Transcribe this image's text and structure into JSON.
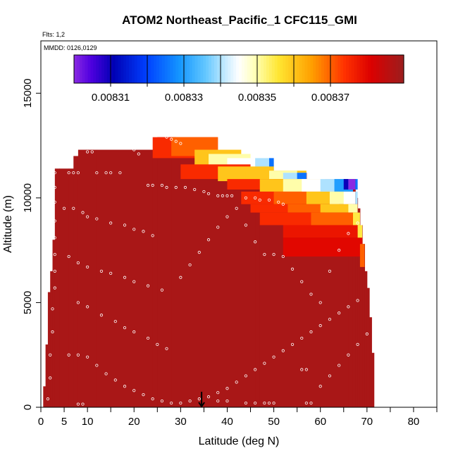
{
  "chart_data": {
    "type": "heatmap",
    "title": "ATOM2 Northeast_Pacific_1 CFC115_GMI",
    "flights_label": "Flts: 1,2",
    "dates_label": "MMDD: 0126,0129",
    "xlabel": "Latitude (deg N)",
    "ylabel": "Altitude (m)",
    "xlim": [
      0,
      85
    ],
    "ylim": [
      0,
      17500
    ],
    "x_ticks": [
      0,
      5,
      10,
      20,
      30,
      40,
      50,
      60,
      70,
      80
    ],
    "x_minor_ticks": [
      15,
      25,
      35,
      45,
      55,
      65,
      75,
      85
    ],
    "y_ticks": [
      0,
      5000,
      10000,
      15000
    ],
    "colorbar": {
      "min": 0.0083,
      "max": 0.00839,
      "ticks": [
        0.00831,
        0.00833,
        0.00835,
        0.00837
      ],
      "tick_labels": [
        "0.00831",
        "0.00833",
        "0.00835",
        "0.00837"
      ]
    },
    "background_value": 0.008388,
    "coverage": [
      [
        0.5,
        0,
        1000
      ],
      [
        1,
        0,
        3000
      ],
      [
        1.5,
        0,
        5500
      ],
      [
        2,
        0,
        6500
      ],
      [
        2.5,
        0,
        8000
      ],
      [
        3,
        0,
        11400
      ],
      [
        4,
        0,
        11400
      ],
      [
        6,
        0,
        11400
      ],
      [
        7,
        0,
        12000
      ],
      [
        8,
        0,
        12300
      ],
      [
        12,
        0,
        12300
      ],
      [
        24,
        0,
        12300
      ],
      [
        25,
        0,
        12900
      ],
      [
        28,
        0,
        12900
      ],
      [
        29,
        0,
        12300
      ],
      [
        36,
        0,
        12300
      ],
      [
        38,
        0,
        11700
      ],
      [
        46,
        0,
        11700
      ],
      [
        47,
        0,
        11200
      ],
      [
        56,
        0,
        11200
      ],
      [
        57,
        0,
        10900
      ],
      [
        66,
        0,
        10900
      ],
      [
        67,
        0,
        10900
      ],
      [
        67.5,
        0,
        10000
      ],
      [
        68,
        0,
        9500
      ],
      [
        68.5,
        0,
        8700
      ],
      [
        69,
        0,
        7800
      ],
      [
        69.5,
        0,
        6500
      ],
      [
        70,
        0,
        5700
      ],
      [
        70.5,
        0,
        4300
      ],
      [
        71,
        0,
        2600
      ],
      [
        71.5,
        0,
        0
      ]
    ],
    "anomalies": [
      {
        "lat": [
          24,
          38
        ],
        "alt": [
          11900,
          12900
        ],
        "value": 0.008375
      },
      {
        "lat": [
          28,
          38
        ],
        "alt": [
          12000,
          12900
        ],
        "value": 0.00837
      },
      {
        "lat": [
          33,
          43
        ],
        "alt": [
          11200,
          12300
        ],
        "value": 0.00836
      },
      {
        "lat": [
          36,
          45
        ],
        "alt": [
          11300,
          12100
        ],
        "value": 0.00835
      },
      {
        "lat": [
          40,
          49
        ],
        "alt": [
          11300,
          11900
        ],
        "value": 0.008345
      },
      {
        "lat": [
          46,
          50
        ],
        "alt": [
          11300,
          11900
        ],
        "value": 0.00834
      },
      {
        "lat": [
          49,
          50
        ],
        "alt": [
          11300,
          11900
        ],
        "value": 0.008325
      },
      {
        "lat": [
          30,
          45
        ],
        "alt": [
          10900,
          11600
        ],
        "value": 0.008375
      },
      {
        "lat": [
          38,
          50
        ],
        "alt": [
          10800,
          11500
        ],
        "value": 0.00836
      },
      {
        "lat": [
          44,
          57
        ],
        "alt": [
          10900,
          11300
        ],
        "value": 0.00836
      },
      {
        "lat": [
          49,
          55
        ],
        "alt": [
          10900,
          11300
        ],
        "value": 0.00835
      },
      {
        "lat": [
          52,
          57
        ],
        "alt": [
          10900,
          11200
        ],
        "value": 0.00834
      },
      {
        "lat": [
          55,
          57
        ],
        "alt": [
          10900,
          11200
        ],
        "value": 0.008325
      },
      {
        "lat": [
          40,
          52
        ],
        "alt": [
          10400,
          10900
        ],
        "value": 0.008375
      },
      {
        "lat": [
          47,
          56
        ],
        "alt": [
          10300,
          10900
        ],
        "value": 0.00836
      },
      {
        "lat": [
          52,
          61
        ],
        "alt": [
          10300,
          10900
        ],
        "value": 0.00835
      },
      {
        "lat": [
          56,
          63
        ],
        "alt": [
          10300,
          10900
        ],
        "value": 0.008345
      },
      {
        "lat": [
          60,
          65
        ],
        "alt": [
          10300,
          10900
        ],
        "value": 0.00834
      },
      {
        "lat": [
          63,
          67
        ],
        "alt": [
          10300,
          10900
        ],
        "value": 0.00833
      },
      {
        "lat": [
          65,
          66
        ],
        "alt": [
          10400,
          10900
        ],
        "value": 0.00831
      },
      {
        "lat": [
          66,
          67.5
        ],
        "alt": [
          10400,
          10900
        ],
        "value": 0.0083
      },
      {
        "lat": [
          67.5,
          68
        ],
        "alt": [
          10400,
          10900
        ],
        "value": 0.008325
      },
      {
        "lat": [
          43,
          56
        ],
        "alt": [
          9700,
          10300
        ],
        "value": 0.008375
      },
      {
        "lat": [
          50,
          60
        ],
        "alt": [
          9700,
          10300
        ],
        "value": 0.00837
      },
      {
        "lat": [
          57,
          64
        ],
        "alt": [
          9700,
          10300
        ],
        "value": 0.00836
      },
      {
        "lat": [
          62,
          67
        ],
        "alt": [
          9700,
          10300
        ],
        "value": 0.00835
      },
      {
        "lat": [
          65,
          67.5
        ],
        "alt": [
          9700,
          10300
        ],
        "value": 0.008345
      },
      {
        "lat": [
          67.5,
          68
        ],
        "alt": [
          9700,
          10300
        ],
        "value": 0.00834
      },
      {
        "lat": [
          45,
          57
        ],
        "alt": [
          9300,
          9700
        ],
        "value": 0.008375
      },
      {
        "lat": [
          53,
          62
        ],
        "alt": [
          9300,
          9700
        ],
        "value": 0.00837
      },
      {
        "lat": [
          60,
          67
        ],
        "alt": [
          9300,
          9700
        ],
        "value": 0.00836
      },
      {
        "lat": [
          66,
          68
        ],
        "alt": [
          9300,
          9700
        ],
        "value": 0.00835
      },
      {
        "lat": [
          47,
          61
        ],
        "alt": [
          8700,
          9300
        ],
        "value": 0.008375
      },
      {
        "lat": [
          58,
          68
        ],
        "alt": [
          8700,
          9300
        ],
        "value": 0.00837
      },
      {
        "lat": [
          67,
          68.5
        ],
        "alt": [
          8700,
          9300
        ],
        "value": 0.008355
      },
      {
        "lat": [
          52,
          68
        ],
        "alt": [
          8100,
          8700
        ],
        "value": 0.008378
      },
      {
        "lat": [
          68,
          69
        ],
        "alt": [
          7800,
          8700
        ],
        "value": 0.008355
      },
      {
        "lat": [
          52,
          69
        ],
        "alt": [
          7200,
          8100
        ],
        "value": 0.00838
      },
      {
        "lat": [
          68.5,
          69.5
        ],
        "alt": [
          6700,
          7800
        ],
        "value": 0.00837
      }
    ],
    "obs_points": [
      [
        1.5,
        400
      ],
      [
        2,
        1400
      ],
      [
        2,
        2500
      ],
      [
        2.5,
        3600
      ],
      [
        2.5,
        4700
      ],
      [
        3,
        5700
      ],
      [
        3,
        6500
      ],
      [
        3,
        7300
      ],
      [
        3,
        8100
      ],
      [
        3,
        8900
      ],
      [
        3,
        9800
      ],
      [
        3,
        10500
      ],
      [
        3,
        11200
      ],
      [
        6,
        11200
      ],
      [
        7,
        11200
      ],
      [
        8,
        11200
      ],
      [
        8,
        150
      ],
      [
        9,
        150
      ],
      [
        6,
        2500
      ],
      [
        8,
        2500
      ],
      [
        10,
        12200
      ],
      [
        11,
        12200
      ],
      [
        12,
        11200
      ],
      [
        14,
        11200
      ],
      [
        15,
        11200
      ],
      [
        17,
        11200
      ],
      [
        18,
        12500
      ],
      [
        19,
        12500
      ],
      [
        20,
        12300
      ],
      [
        21,
        12100
      ],
      [
        23,
        10600
      ],
      [
        24,
        10600
      ],
      [
        26,
        10600
      ],
      [
        27,
        10500
      ],
      [
        29,
        10500
      ],
      [
        31,
        10500
      ],
      [
        33,
        10400
      ],
      [
        35,
        10300
      ],
      [
        36,
        10200
      ],
      [
        27,
        12900
      ],
      [
        28,
        12800
      ],
      [
        29,
        12700
      ],
      [
        30,
        12600
      ],
      [
        38,
        10100
      ],
      [
        39,
        10100
      ],
      [
        40,
        10100
      ],
      [
        41,
        10100
      ],
      [
        44,
        10000
      ],
      [
        46,
        10000
      ],
      [
        47,
        9900
      ],
      [
        49,
        9900
      ],
      [
        51,
        9800
      ],
      [
        52,
        9700
      ],
      [
        5,
        9500
      ],
      [
        7,
        9500
      ],
      [
        9,
        9300
      ],
      [
        10,
        9100
      ],
      [
        12,
        9000
      ],
      [
        15,
        8800
      ],
      [
        18,
        8700
      ],
      [
        20,
        8500
      ],
      [
        22,
        8400
      ],
      [
        24,
        8200
      ],
      [
        6,
        7200
      ],
      [
        8,
        6900
      ],
      [
        10,
        6700
      ],
      [
        13,
        6500
      ],
      [
        15,
        6400
      ],
      [
        18,
        6200
      ],
      [
        20,
        6000
      ],
      [
        23,
        5800
      ],
      [
        26,
        5600
      ],
      [
        8,
        5000
      ],
      [
        10,
        4800
      ],
      [
        13,
        4400
      ],
      [
        16,
        4100
      ],
      [
        18,
        3800
      ],
      [
        20,
        3600
      ],
      [
        23,
        3300
      ],
      [
        25,
        3000
      ],
      [
        27,
        2800
      ],
      [
        10,
        2400
      ],
      [
        12,
        2000
      ],
      [
        14,
        1600
      ],
      [
        16,
        1300
      ],
      [
        18,
        1000
      ],
      [
        20,
        800
      ],
      [
        22,
        600
      ],
      [
        24,
        400
      ],
      [
        26,
        300
      ],
      [
        28,
        200
      ],
      [
        30,
        200
      ],
      [
        32,
        300
      ],
      [
        34,
        400
      ],
      [
        36,
        500
      ],
      [
        38,
        700
      ],
      [
        40,
        900
      ],
      [
        42,
        1200
      ],
      [
        44,
        1500
      ],
      [
        46,
        1800
      ],
      [
        48,
        2100
      ],
      [
        50,
        2400
      ],
      [
        52,
        2700
      ],
      [
        54,
        3000
      ],
      [
        56,
        3300
      ],
      [
        58,
        3600
      ],
      [
        60,
        3900
      ],
      [
        62,
        4200
      ],
      [
        64,
        4500
      ],
      [
        66,
        4800
      ],
      [
        68,
        5100
      ],
      [
        30,
        6200
      ],
      [
        32,
        6800
      ],
      [
        34,
        7400
      ],
      [
        36,
        8000
      ],
      [
        38,
        8600
      ],
      [
        40,
        9100
      ],
      [
        42,
        9500
      ],
      [
        44,
        8700
      ],
      [
        46,
        7900
      ],
      [
        48,
        7300
      ],
      [
        50,
        7300
      ],
      [
        52,
        7200
      ],
      [
        54,
        6600
      ],
      [
        56,
        6000
      ],
      [
        58,
        5400
      ],
      [
        60,
        5000
      ],
      [
        62,
        6500
      ],
      [
        64,
        7500
      ],
      [
        66,
        8300
      ],
      [
        68,
        8800
      ],
      [
        56,
        1800
      ],
      [
        57,
        1800
      ],
      [
        57,
        200
      ],
      [
        58,
        200
      ],
      [
        60,
        1000
      ],
      [
        62,
        1500
      ],
      [
        64,
        2000
      ],
      [
        66,
        2500
      ],
      [
        68,
        3000
      ],
      [
        70,
        3500
      ],
      [
        38,
        300
      ],
      [
        40,
        300
      ],
      [
        44,
        200
      ],
      [
        46,
        200
      ],
      [
        48,
        200
      ],
      [
        49,
        200
      ],
      [
        50,
        200
      ]
    ],
    "arrow_lat": 34.5
  }
}
